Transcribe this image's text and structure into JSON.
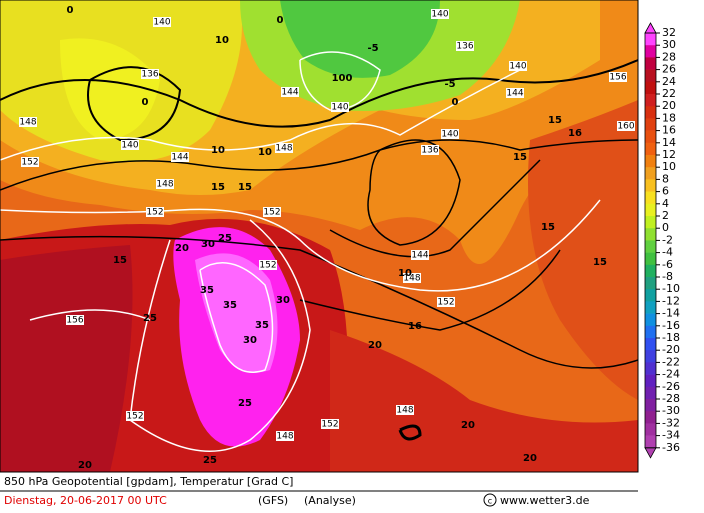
{
  "footer": {
    "title": "850 hPa Geopotential [gpdam], Temperatur [Grad C]",
    "date": "Dienstag, 20-06-2017  00 UTC",
    "model": "(GFS)",
    "run": "(Analyse)",
    "source": "www.wetter3.de"
  },
  "colorbar": {
    "ticks": [
      32,
      30,
      28,
      26,
      24,
      22,
      20,
      18,
      16,
      14,
      12,
      10,
      8,
      6,
      4,
      2,
      0,
      -2,
      -4,
      -6,
      -8,
      -10,
      -12,
      -14,
      -16,
      -18,
      -20,
      -22,
      -24,
      -26,
      -28,
      -30,
      -32,
      -34,
      -36
    ],
    "colors": [
      "#ff44ff",
      "#e000a0",
      "#c00040",
      "#b81020",
      "#c01010",
      "#d02020",
      "#d83010",
      "#e04010",
      "#e85010",
      "#f06010",
      "#f08010",
      "#f0a020",
      "#f8c020",
      "#f8e020",
      "#e8f020",
      "#c0f020",
      "#90e030",
      "#60d040",
      "#40c040",
      "#20b060",
      "#20a080",
      "#10a0a0",
      "#10a0c0",
      "#1090e0",
      "#2070f0",
      "#3050f0",
      "#4040e0",
      "#5030d0",
      "#6020c0",
      "#7020b0",
      "#8020a0",
      "#902090",
      "#a030a0",
      "#b040b0"
    ]
  },
  "geopotential_labels": [
    140,
    140,
    140,
    136,
    136,
    144,
    144,
    144,
    144,
    148,
    148,
    148,
    148,
    148,
    152,
    152,
    152,
    152,
    152,
    152,
    152,
    156,
    156,
    160,
    140,
    140,
    140,
    136,
    148
  ],
  "temperature_labels": [
    0,
    0,
    0,
    0,
    -5,
    -5,
    10,
    10,
    10,
    10,
    15,
    15,
    15,
    15,
    15,
    15,
    15,
    16,
    16,
    20,
    20,
    20,
    20,
    20,
    25,
    25,
    25,
    25,
    30,
    30,
    30,
    35,
    35,
    35,
    100
  ]
}
